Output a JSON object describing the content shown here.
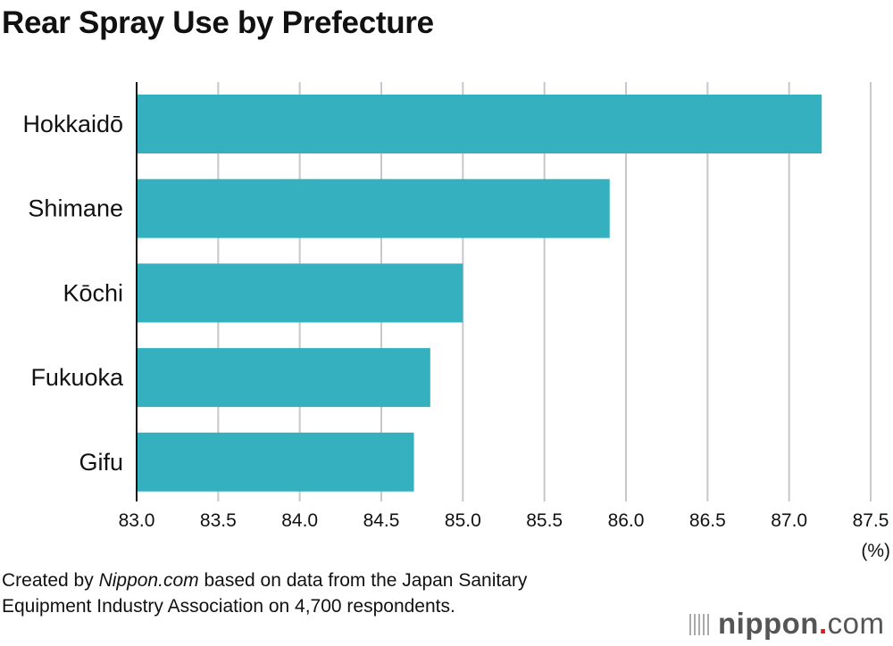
{
  "chart_data": {
    "type": "bar",
    "orientation": "horizontal",
    "title": "Rear Spray Use by Prefecture",
    "categories": [
      "Hokkaidō",
      "Shimane",
      "Kōchi",
      "Fukuoka",
      "Gifu"
    ],
    "values": [
      87.2,
      85.9,
      85.0,
      84.8,
      84.7
    ],
    "xlim": [
      83.0,
      87.5
    ],
    "xticks": [
      "83.0",
      "83.5",
      "84.0",
      "84.5",
      "85.0",
      "85.5",
      "86.0",
      "86.5",
      "87.0",
      "87.5"
    ],
    "xunit": "(%)",
    "grid": true,
    "bar_color": "#34b0bf"
  },
  "footer": {
    "prefix": "Created by ",
    "source": "Nippon.com",
    "line1_rest": " based on data from the Japan Sanitary",
    "line2": "Equipment Industry Association on 4,700 respondents."
  },
  "logo": {
    "text": "nippon.com"
  }
}
